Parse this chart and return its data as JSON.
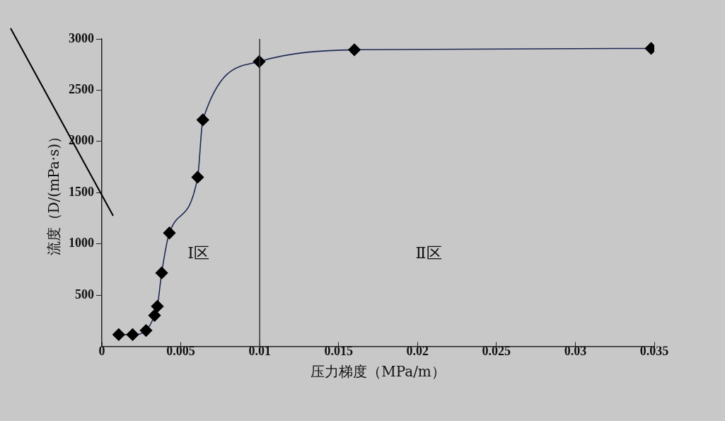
{
  "chart_data": {
    "type": "line",
    "xlabel": "压力梯度（MPa/m）",
    "ylabel": "流度（D/(mPa·s)）",
    "series": [
      {
        "color": "#1f2a55",
        "x": [
          0.00107,
          0.00195,
          0.0028,
          0.00334,
          0.00352,
          0.00379,
          0.00428,
          0.00607,
          0.0064,
          0.00997,
          0.016,
          0.0348
        ],
        "values": [
          114,
          114,
          154,
          301,
          390,
          716,
          1106,
          1650,
          2210,
          2779,
          2894,
          2907
        ]
      }
    ],
    "xlim": [
      0,
      0.035
    ],
    "xticks": [
      0,
      0.005,
      0.01,
      0.015,
      0.02,
      0.025,
      0.03,
      0.035
    ],
    "ylim": [
      0,
      3000
    ],
    "yticks": [
      500,
      1000,
      1500,
      2000,
      2500,
      3000
    ],
    "ref_lines": [
      {
        "axis": "x",
        "value": 0.01,
        "color": "#333333"
      }
    ],
    "annotations": [
      "Ⅰ区",
      "Ⅱ区"
    ],
    "marker": "diamond",
    "grid": false,
    "legend": false
  }
}
